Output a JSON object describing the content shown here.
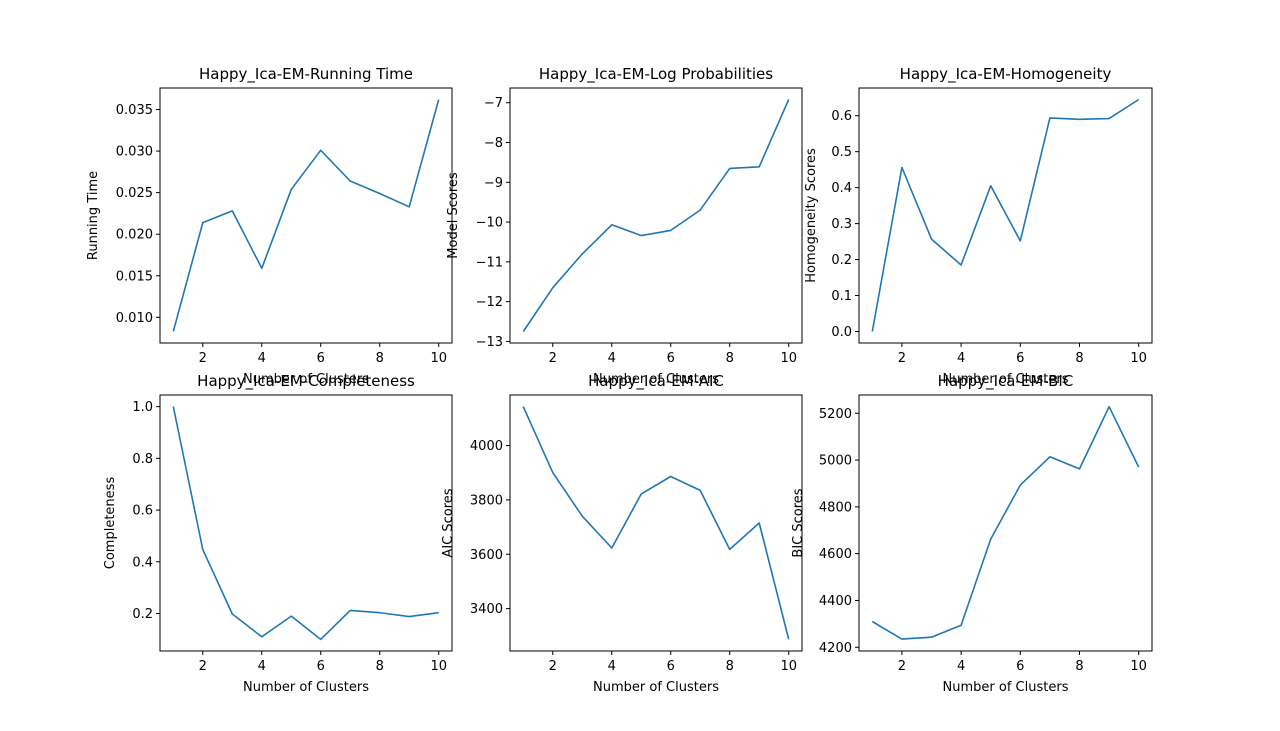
{
  "colors": {
    "line": "#1f77b4",
    "axes": "#000000",
    "background": "#ffffff"
  },
  "chart_data": [
    {
      "type": "line",
      "title": "Happy_Ica-EM-Running Time",
      "xlabel": "Number of Clusters",
      "ylabel": "Running Time",
      "x": [
        1,
        2,
        3,
        4,
        5,
        6,
        7,
        8,
        9,
        10
      ],
      "series": [
        {
          "values": [
            0.0083,
            0.0214,
            0.0228,
            0.0159,
            0.0254,
            0.0301,
            0.0264,
            0.0249,
            0.0233,
            0.0362
          ]
        }
      ],
      "xlim": [
        0.55,
        10.45
      ],
      "ylim": [
        0.00691,
        0.03759
      ],
      "xticks": [
        2,
        4,
        6,
        8,
        10
      ],
      "yticks": [
        0.01,
        0.015,
        0.02,
        0.025,
        0.03,
        0.035
      ],
      "ytick_labels": [
        "0.010",
        "0.015",
        "0.020",
        "0.025",
        "0.030",
        "0.035"
      ],
      "grid": false
    },
    {
      "type": "line",
      "title": "Happy_Ica-EM-Log Probabilities",
      "xlabel": "Number of Clusters",
      "ylabel": "Model Scores",
      "x": [
        1,
        2,
        3,
        4,
        5,
        6,
        7,
        8,
        9,
        10
      ],
      "series": [
        {
          "values": [
            -12.75,
            -11.65,
            -10.8,
            -10.07,
            -10.34,
            -10.21,
            -9.7,
            -8.65,
            -8.61,
            -6.92
          ]
        }
      ],
      "xlim": [
        0.55,
        10.45
      ],
      "ylim": [
        -13.04,
        -6.63
      ],
      "xticks": [
        2,
        4,
        6,
        8,
        10
      ],
      "yticks": [
        -13,
        -12,
        -11,
        -10,
        -9,
        -8,
        -7
      ],
      "ytick_labels": [
        "−13",
        "−12",
        "−11",
        "−10",
        "−9",
        "−8",
        "−7"
      ],
      "grid": false
    },
    {
      "type": "line",
      "title": "Happy_Ica-EM-Homogeneity",
      "xlabel": "Number of Clusters",
      "ylabel": "Homogeneity Scores",
      "x": [
        1,
        2,
        3,
        4,
        5,
        6,
        7,
        8,
        9,
        10
      ],
      "series": [
        {
          "values": [
            0.0,
            0.456,
            0.257,
            0.185,
            0.405,
            0.252,
            0.594,
            0.59,
            0.592,
            0.645
          ]
        }
      ],
      "xlim": [
        0.55,
        10.45
      ],
      "ylim": [
        -0.032,
        0.677
      ],
      "xticks": [
        2,
        4,
        6,
        8,
        10
      ],
      "yticks": [
        0.0,
        0.1,
        0.2,
        0.3,
        0.4,
        0.5,
        0.6
      ],
      "ytick_labels": [
        "0.0",
        "0.1",
        "0.2",
        "0.3",
        "0.4",
        "0.5",
        "0.6"
      ],
      "grid": false
    },
    {
      "type": "line",
      "title": "Happy_Ica-EM-Completeness",
      "xlabel": "Number of Clusters",
      "ylabel": "Completeness",
      "x": [
        1,
        2,
        3,
        4,
        5,
        6,
        7,
        8,
        9,
        10
      ],
      "series": [
        {
          "values": [
            1.0,
            0.447,
            0.198,
            0.11,
            0.19,
            0.1,
            0.212,
            0.203,
            0.188,
            0.203
          ]
        }
      ],
      "xlim": [
        0.55,
        10.45
      ],
      "ylim": [
        0.055,
        1.045
      ],
      "xticks": [
        2,
        4,
        6,
        8,
        10
      ],
      "yticks": [
        0.2,
        0.4,
        0.6,
        0.8,
        1.0
      ],
      "ytick_labels": [
        "0.2",
        "0.4",
        "0.6",
        "0.8",
        "1.0"
      ],
      "grid": false
    },
    {
      "type": "line",
      "title": "Happy_Ica-EM-AIC",
      "xlabel": "Number of Clusters",
      "ylabel": "AIC Scores",
      "x": [
        1,
        2,
        3,
        4,
        5,
        6,
        7,
        8,
        9,
        10
      ],
      "series": [
        {
          "values": [
            4143,
            3900,
            3740,
            3623,
            3822,
            3886,
            3835,
            3618,
            3715,
            3287
          ]
        }
      ],
      "xlim": [
        0.55,
        10.45
      ],
      "ylim": [
        3244,
        4186
      ],
      "xticks": [
        2,
        4,
        6,
        8,
        10
      ],
      "yticks": [
        3400,
        3600,
        3800,
        4000
      ],
      "ytick_labels": [
        "3400",
        "3600",
        "3800",
        "4000"
      ],
      "grid": false
    },
    {
      "type": "line",
      "title": "Happy_Ica-EM-BIC",
      "xlabel": "Number of Clusters",
      "ylabel": "BIC Scores",
      "x": [
        1,
        2,
        3,
        4,
        5,
        6,
        7,
        8,
        9,
        10
      ],
      "series": [
        {
          "values": [
            4310,
            4235,
            4243,
            4294,
            4662,
            4893,
            5014,
            4962,
            5228,
            4970
          ]
        }
      ],
      "xlim": [
        0.55,
        10.45
      ],
      "ylim": [
        4184,
        5278
      ],
      "xticks": [
        2,
        4,
        6,
        8,
        10
      ],
      "yticks": [
        4200,
        4400,
        4600,
        4800,
        5000,
        5200
      ],
      "ytick_labels": [
        "4200",
        "4400",
        "4600",
        "4800",
        "5000",
        "5200"
      ],
      "grid": false
    }
  ]
}
